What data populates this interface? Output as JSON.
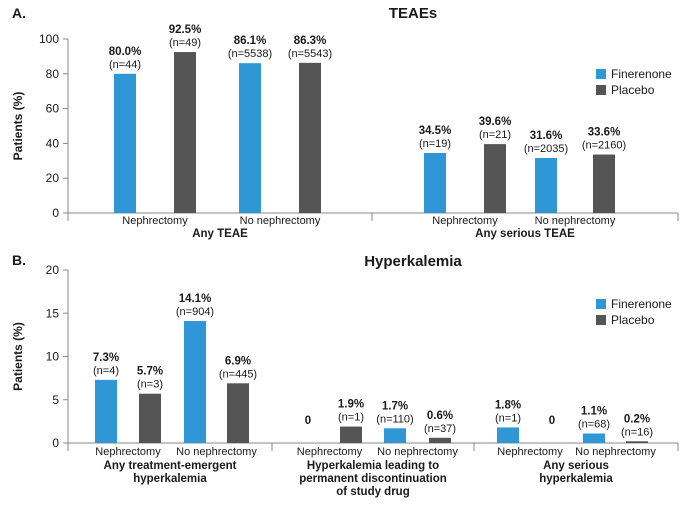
{
  "colors": {
    "finerenone": "#2f97d6",
    "placebo": "#555555",
    "axis": "#888888"
  },
  "chart_data": [
    {
      "panel": "A.",
      "type": "bar",
      "title": "TEAEs",
      "ylabel": "Patients (%)",
      "ylim": [
        0,
        100
      ],
      "yticks": [
        0,
        20,
        40,
        60,
        80,
        100
      ],
      "grid": false,
      "legend_position": "right",
      "series": [
        {
          "name": "Finerenone",
          "color": "#2f97d6"
        },
        {
          "name": "Placebo",
          "color": "#555555"
        }
      ],
      "groups": [
        {
          "label": [
            "Any TEAE"
          ],
          "subgroups": [
            {
              "label": "Nephrectomy",
              "bars": [
                {
                  "value": 80.0,
                  "value_label": "80.0%",
                  "n_label": "(n=44)"
                },
                {
                  "value": 92.5,
                  "value_label": "92.5%",
                  "n_label": "(n=49)"
                }
              ]
            },
            {
              "label": "No nephrectomy",
              "bars": [
                {
                  "value": 86.1,
                  "value_label": "86.1%",
                  "n_label": "(n=5538)"
                },
                {
                  "value": 86.3,
                  "value_label": "86.3%",
                  "n_label": "(n=5543)"
                }
              ]
            }
          ]
        },
        {
          "label": [
            "Any serious TEAE"
          ],
          "subgroups": [
            {
              "label": "Nephrectomy",
              "bars": [
                {
                  "value": 34.5,
                  "value_label": "34.5%",
                  "n_label": "(n=19)"
                },
                {
                  "value": 39.6,
                  "value_label": "39.6%",
                  "n_label": "(n=21)"
                }
              ]
            },
            {
              "label": "No nephrectomy",
              "bars": [
                {
                  "value": 31.6,
                  "value_label": "31.6%",
                  "n_label": "(n=2035)"
                },
                {
                  "value": 33.6,
                  "value_label": "33.6%",
                  "n_label": "(n=2160)"
                }
              ]
            }
          ]
        }
      ]
    },
    {
      "panel": "B.",
      "type": "bar",
      "title": "Hyperkalemia",
      "ylabel": "Patients (%)",
      "ylim": [
        0,
        20
      ],
      "yticks": [
        0,
        5,
        10,
        15,
        20
      ],
      "grid": false,
      "legend_position": "right",
      "series": [
        {
          "name": "Finerenone",
          "color": "#2f97d6"
        },
        {
          "name": "Placebo",
          "color": "#555555"
        }
      ],
      "groups": [
        {
          "label": [
            "Any treatment-emergent",
            "hyperkalemia"
          ],
          "subgroups": [
            {
              "label": "Nephrectomy",
              "bars": [
                {
                  "value": 7.3,
                  "value_label": "7.3%",
                  "n_label": "(n=4)"
                },
                {
                  "value": 5.7,
                  "value_label": "5.7%",
                  "n_label": "(n=3)"
                }
              ]
            },
            {
              "label": "No nephrectomy",
              "bars": [
                {
                  "value": 14.1,
                  "value_label": "14.1%",
                  "n_label": "(n=904)"
                },
                {
                  "value": 6.9,
                  "value_label": "6.9%",
                  "n_label": "(n=445)"
                }
              ]
            }
          ]
        },
        {
          "label": [
            "Hyperkalemia leading to",
            "permanent discontinuation",
            "of study drug"
          ],
          "subgroups": [
            {
              "label": "Nephrectomy",
              "bars": [
                {
                  "value": 0,
                  "value_label": "0",
                  "n_label": ""
                },
                {
                  "value": 1.9,
                  "value_label": "1.9%",
                  "n_label": "(n=1)"
                }
              ]
            },
            {
              "label": "No nephrectomy",
              "bars": [
                {
                  "value": 1.7,
                  "value_label": "1.7%",
                  "n_label": "(n=110)"
                },
                {
                  "value": 0.6,
                  "value_label": "0.6%",
                  "n_label": "(n=37)"
                }
              ]
            }
          ]
        },
        {
          "label": [
            "Any serious",
            "hyperkalemia"
          ],
          "subgroups": [
            {
              "label": "Nephrectomy",
              "bars": [
                {
                  "value": 1.8,
                  "value_label": "1.8%",
                  "n_label": "(n=1)"
                },
                {
                  "value": 0,
                  "value_label": "0",
                  "n_label": ""
                }
              ]
            },
            {
              "label": "No nephrectomy",
              "bars": [
                {
                  "value": 1.1,
                  "value_label": "1.1%",
                  "n_label": "(n=68)"
                },
                {
                  "value": 0.2,
                  "value_label": "0.2%",
                  "n_label": "(n=16)"
                }
              ]
            }
          ]
        }
      ]
    }
  ]
}
